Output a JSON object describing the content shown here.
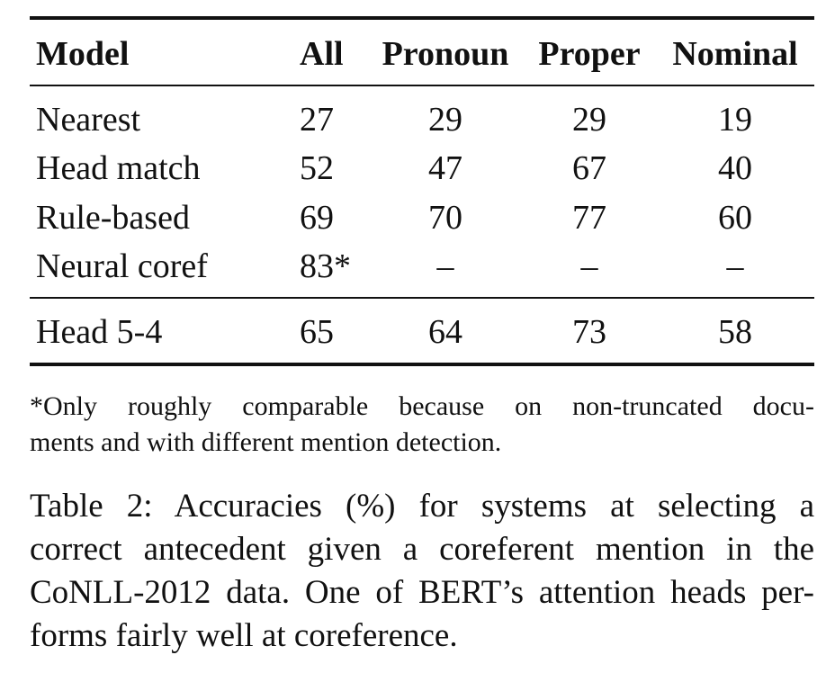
{
  "table": {
    "header": [
      "Model",
      "All",
      "Pronoun",
      "Proper",
      "Nominal"
    ],
    "rows": [
      [
        "Nearest",
        "27",
        "29",
        "29",
        "19"
      ],
      [
        "Head match",
        "52",
        "47",
        "67",
        "40"
      ],
      [
        "Rule-based",
        "69",
        "70",
        "77",
        "60"
      ],
      [
        "Neural coref",
        "83*",
        "–",
        "–",
        "–"
      ],
      [
        "Head 5-4",
        "65",
        "64",
        "73",
        "58"
      ]
    ]
  },
  "footnote": [
    "*Only roughly comparable because on non-truncated docu-",
    "ments and with different mention detection."
  ],
  "caption": [
    "Table 2:  Accuracies (%) for systems at selecting a",
    "correct antecedent given a coreferent mention in the",
    "CoNLL-2012 data. One of BERT’s attention heads per-",
    "forms fairly well at coreference."
  ]
}
